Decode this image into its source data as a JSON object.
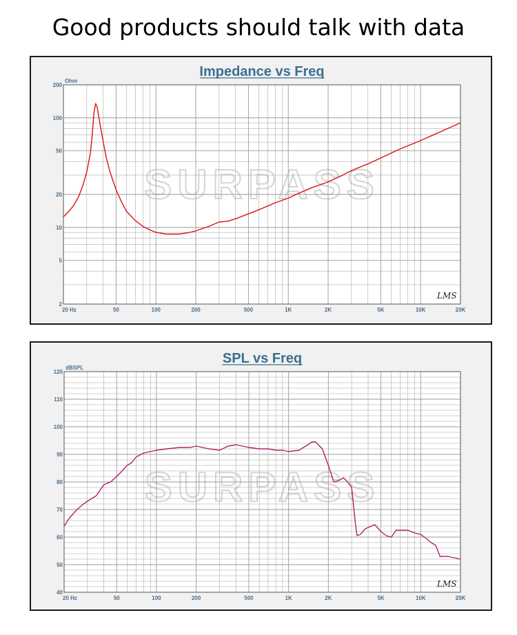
{
  "header": {
    "title": "Good products should talk with data"
  },
  "watermark": "SURPASS",
  "logo_text": "LMS",
  "chart_data": [
    {
      "type": "line",
      "title": "Impedance vs Freq",
      "ylabel": "Ohm",
      "xlabel": "",
      "x_scale": "log",
      "y_scale": "log",
      "xlim": [
        20,
        20000
      ],
      "ylim": [
        2,
        200
      ],
      "x_ticks": [
        {
          "v": 20,
          "label": "20  Hz"
        },
        {
          "v": 50,
          "label": "50"
        },
        {
          "v": 100,
          "label": "100"
        },
        {
          "v": 200,
          "label": "200"
        },
        {
          "v": 500,
          "label": "500"
        },
        {
          "v": 1000,
          "label": "1K"
        },
        {
          "v": 2000,
          "label": "2K"
        },
        {
          "v": 5000,
          "label": "5K"
        },
        {
          "v": 10000,
          "label": "10K"
        },
        {
          "v": 20000,
          "label": "20K"
        }
      ],
      "y_ticks": [
        {
          "v": 200,
          "label": "200"
        },
        {
          "v": 100,
          "label": "100"
        },
        {
          "v": 50,
          "label": "50"
        },
        {
          "v": 20,
          "label": "20"
        },
        {
          "v": 10,
          "label": "10"
        },
        {
          "v": 5,
          "label": "5"
        },
        {
          "v": 2,
          "label": "2"
        }
      ],
      "color": "#e01010",
      "series": [
        {
          "x": [
            20,
            22,
            24,
            26,
            28,
            30,
            32,
            33,
            34,
            35,
            36,
            38,
            40,
            42,
            45,
            50,
            55,
            60,
            70,
            80,
            90,
            100,
            120,
            150,
            180,
            200,
            250,
            300,
            350,
            400,
            500,
            600,
            700,
            800,
            1000,
            1200,
            1500,
            2000,
            2500,
            3000,
            4000,
            5000,
            7000,
            10000,
            15000,
            20000
          ],
          "y": [
            12.5,
            14,
            16,
            19,
            24,
            32,
            48,
            70,
            110,
            135,
            125,
            85,
            60,
            44,
            32,
            22,
            17,
            14,
            11.5,
            10.2,
            9.5,
            9.0,
            8.7,
            8.7,
            9.0,
            9.3,
            10.2,
            11.2,
            11.4,
            12.0,
            13.3,
            14.5,
            15.7,
            16.8,
            18.5,
            20.5,
            23,
            26,
            29.5,
            33,
            38,
            43,
            52,
            62,
            77,
            90
          ]
        }
      ]
    },
    {
      "type": "line",
      "title": "SPL vs Freq",
      "ylabel": "dBSPL",
      "xlabel": "",
      "x_scale": "log",
      "xlim": [
        20,
        20000
      ],
      "ylim": [
        40,
        120
      ],
      "x_ticks": [
        {
          "v": 20,
          "label": "20  Hz"
        },
        {
          "v": 50,
          "label": "50"
        },
        {
          "v": 100,
          "label": "100"
        },
        {
          "v": 200,
          "label": "200"
        },
        {
          "v": 500,
          "label": "500"
        },
        {
          "v": 1000,
          "label": "1K"
        },
        {
          "v": 2000,
          "label": "2K"
        },
        {
          "v": 5000,
          "label": "5K"
        },
        {
          "v": 10000,
          "label": "10K"
        },
        {
          "v": 20000,
          "label": "20K"
        }
      ],
      "y_ticks": [
        {
          "v": 120,
          "label": "120"
        },
        {
          "v": 110,
          "label": "110"
        },
        {
          "v": 100,
          "label": "100"
        },
        {
          "v": 90,
          "label": "90"
        },
        {
          "v": 80,
          "label": "80"
        },
        {
          "v": 70,
          "label": "70"
        },
        {
          "v": 60,
          "label": "60"
        },
        {
          "v": 50,
          "label": "50"
        },
        {
          "v": 40,
          "label": "40"
        }
      ],
      "color": "#b0206a",
      "series": [
        {
          "x": [
            20,
            22,
            25,
            28,
            30,
            35,
            40,
            45,
            50,
            55,
            60,
            65,
            70,
            80,
            90,
            100,
            120,
            150,
            180,
            200,
            250,
            300,
            350,
            400,
            500,
            600,
            700,
            800,
            900,
            1000,
            1200,
            1400,
            1500,
            1600,
            1800,
            2000,
            2200,
            2400,
            2600,
            2800,
            3000,
            3200,
            3300,
            3500,
            3800,
            4000,
            4500,
            5000,
            5500,
            6000,
            6500,
            7000,
            8000,
            9000,
            10000,
            11000,
            12000,
            13000,
            14000,
            16000,
            18000,
            20000
          ],
          "y": [
            64,
            67,
            70,
            72,
            73,
            75,
            79,
            80,
            82,
            84,
            86,
            87,
            89,
            90.5,
            91,
            91.5,
            92,
            92.5,
            92.5,
            93,
            92,
            91.5,
            93,
            93.5,
            92.5,
            92,
            92,
            91.5,
            91.5,
            91,
            91.5,
            93.5,
            94.5,
            94.5,
            92,
            86,
            80,
            80.5,
            81.5,
            80,
            78,
            65,
            60.5,
            61,
            63,
            63.5,
            64.5,
            62,
            60.5,
            60,
            62.5,
            62.5,
            62.5,
            61.5,
            61,
            59.5,
            58,
            57,
            53,
            53,
            52.5,
            52
          ]
        }
      ]
    }
  ]
}
